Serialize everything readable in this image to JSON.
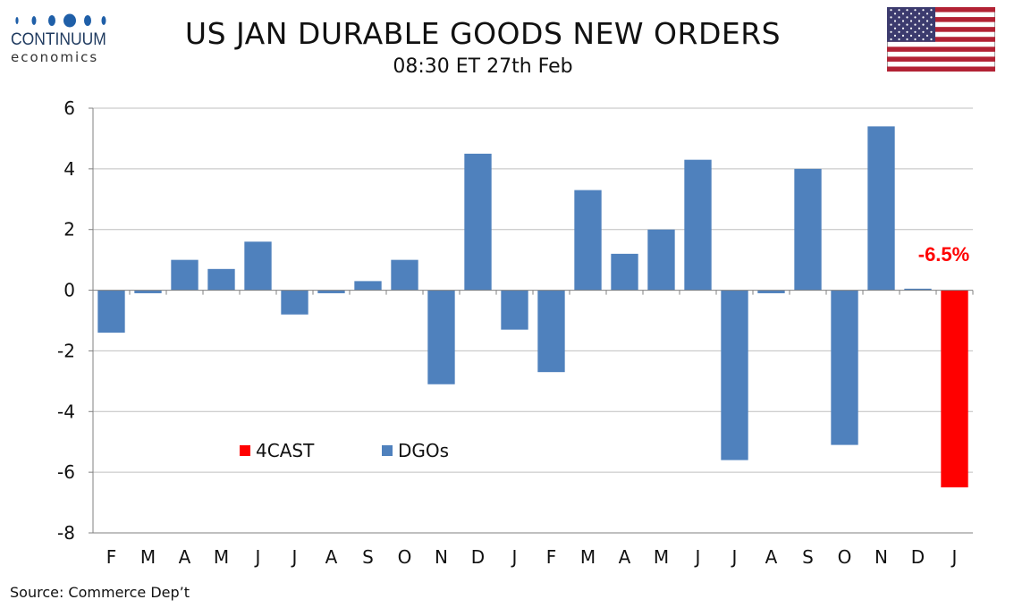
{
  "logo": {
    "name": "CONTINUUM",
    "sub": "economics"
  },
  "header": {
    "title": "US JAN DURABLE GOODS NEW ORDERS",
    "subtitle": "08:30 ET 27th Feb"
  },
  "flag": {
    "icon": "us-flag-icon"
  },
  "footer": {
    "source": "Source: Commerce Dep’t"
  },
  "colors": {
    "dgos": "#4f81bd",
    "forecast": "#ff0000",
    "grid": "#bfbfbf",
    "axis": "#808080",
    "callout": "#ff0000",
    "logo": "#1f5fa8"
  },
  "chart_data": {
    "type": "bar",
    "categories": [
      "F",
      "M",
      "A",
      "M",
      "J",
      "J",
      "A",
      "S",
      "O",
      "N",
      "D",
      "J",
      "F",
      "M",
      "A",
      "M",
      "J",
      "J",
      "A",
      "S",
      "O",
      "N",
      "D",
      "J"
    ],
    "series": [
      {
        "name": "DGOs",
        "values": [
          -1.4,
          -0.1,
          1.0,
          0.7,
          1.6,
          -0.8,
          -0.1,
          0.3,
          1.0,
          -3.1,
          4.5,
          -1.3,
          -2.7,
          3.3,
          1.2,
          2.0,
          4.3,
          -5.6,
          -0.1,
          4.0,
          -5.1,
          5.4,
          0.05,
          null
        ]
      },
      {
        "name": "4CAST",
        "values": [
          null,
          null,
          null,
          null,
          null,
          null,
          null,
          null,
          null,
          null,
          null,
          null,
          null,
          null,
          null,
          null,
          null,
          null,
          null,
          null,
          null,
          null,
          null,
          -6.5
        ]
      }
    ],
    "ylim": [
      -8,
      6
    ],
    "yticks": [
      6,
      4,
      2,
      0,
      -2,
      -4,
      -6,
      -8
    ],
    "grid": true,
    "legend": {
      "placement": "lower-left",
      "entries": [
        "4CAST",
        "DGOs"
      ]
    },
    "annotation": "-6.5%"
  }
}
